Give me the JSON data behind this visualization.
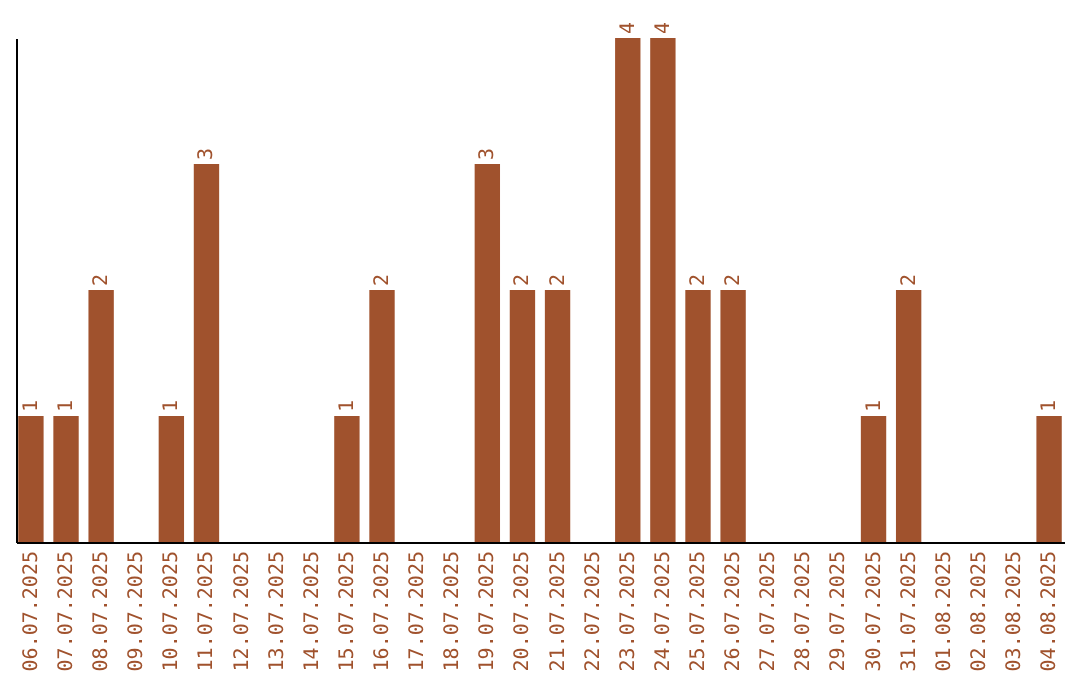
{
  "chart_data": {
    "type": "bar",
    "categories": [
      "06.07.2025",
      "07.07.2025",
      "08.07.2025",
      "09.07.2025",
      "10.07.2025",
      "11.07.2025",
      "12.07.2025",
      "13.07.2025",
      "14.07.2025",
      "15.07.2025",
      "16.07.2025",
      "17.07.2025",
      "18.07.2025",
      "19.07.2025",
      "20.07.2025",
      "21.07.2025",
      "22.07.2025",
      "23.07.2025",
      "24.07.2025",
      "25.07.2025",
      "26.07.2025",
      "27.07.2025",
      "28.07.2025",
      "29.07.2025",
      "30.07.2025",
      "31.07.2025",
      "01.08.2025",
      "02.08.2025",
      "03.08.2025",
      "04.08.2025"
    ],
    "values": [
      1,
      1,
      2,
      0,
      1,
      3,
      0,
      0,
      0,
      1,
      2,
      0,
      0,
      3,
      2,
      2,
      0,
      4,
      4,
      2,
      2,
      0,
      0,
      0,
      1,
      2,
      0,
      0,
      0,
      1
    ],
    "value_labels": [
      "1",
      "1",
      "2",
      null,
      "1",
      "3",
      null,
      null,
      null,
      "1",
      "2",
      null,
      null,
      "3",
      "2",
      "2",
      null,
      "4",
      "4",
      "2",
      "2",
      null,
      null,
      null,
      "1",
      "2",
      null,
      null,
      null,
      "1"
    ],
    "color": "#a0522d",
    "ylim": [
      0,
      4
    ],
    "tick_labels": "x",
    "grid": false
  }
}
